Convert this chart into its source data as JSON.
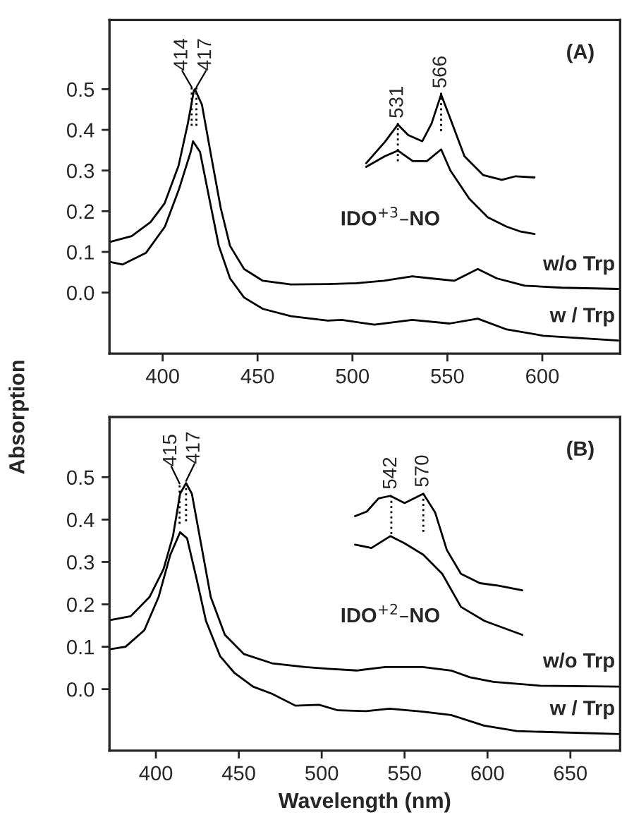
{
  "chart_data": [
    {
      "type": "line",
      "ylabel": "Absorption",
      "xlim": [
        372,
        641
      ],
      "ylim": [
        -0.15,
        0.67
      ],
      "xticks": [
        400,
        450,
        500,
        550,
        600
      ],
      "yticks": [
        {
          "value": 0.0,
          "label": "0.0"
        },
        0.1,
        0.2,
        0.3,
        0.4,
        0.5
      ],
      "grid": false,
      "legend": false,
      "marker": "none",
      "line_style": "solid",
      "series": [
        {
          "name": "w/o Trp",
          "color": "#000000",
          "x": [
            372.6,
            383.7,
            393.6,
            401,
            408.4,
            413.3,
            416.5,
            417,
            420.7,
            425.6,
            430.6,
            435.5,
            442.9,
            452.8,
            467.6,
            487,
            502,
            516.6,
            531.5,
            541.3,
            553.6,
            566,
            576,
            590.7,
            610.4,
            640
          ],
          "values": [
            0.125,
            0.139,
            0.173,
            0.219,
            0.312,
            0.416,
            0.497,
            0.5,
            0.462,
            0.335,
            0.208,
            0.115,
            0.058,
            0.029,
            0.02,
            0.021,
            0.023,
            0.029,
            0.04,
            0.035,
            0.029,
            0.058,
            0.035,
            0.017,
            0.012,
            0.009
          ]
        },
        {
          "name": "w / Trp",
          "color": "#000000",
          "x": [
            372.6,
            378.8,
            391.3,
            401.2,
            408.6,
            414.8,
            416,
            419.7,
            424.6,
            429.6,
            435.5,
            442.9,
            452.8,
            467.6,
            487,
            494.4,
            511.6,
            531.5,
            551.2,
            566,
            580.8,
            600.5,
            640
          ],
          "values": [
            0.075,
            0.069,
            0.098,
            0.162,
            0.254,
            0.346,
            0.372,
            0.346,
            0.231,
            0.115,
            0.035,
            -0.012,
            -0.04,
            -0.058,
            -0.069,
            -0.067,
            -0.079,
            -0.067,
            -0.076,
            -0.064,
            -0.09,
            -0.106,
            -0.118
          ]
        },
        {
          "color": "#000000",
          "x": [
            507.2,
            517,
            523.9,
            529.4,
            536.8,
            541.7,
            546.7,
            551.6,
            559,
            568.8,
            578.7,
            586,
            595.9
          ],
          "values": [
            0.318,
            0.37,
            0.413,
            0.387,
            0.372,
            0.416,
            0.487,
            0.427,
            0.335,
            0.289,
            0.277,
            0.286,
            0.283
          ]
        },
        {
          "color": "#000000",
          "x": [
            507.2,
            517,
            523.9,
            531.8,
            539.2,
            546.7,
            551.6,
            561.5,
            571.3,
            581.2,
            588.6,
            595.9
          ],
          "values": [
            0.309,
            0.335,
            0.349,
            0.323,
            0.323,
            0.352,
            0.3,
            0.231,
            0.185,
            0.162,
            0.15,
            0.144
          ]
        }
      ],
      "annotations": [
        "(A)",
        "IDO$^{+3}$–NO",
        {
          "text": "414",
          "x": 415.3,
          "y": 0.5
        },
        {
          "text": "417",
          "x": 417.8,
          "y": 0.5
        },
        {
          "text": "531",
          "x": 523.9,
          "y": 0.413
        },
        {
          "text": "566",
          "x": 546.7,
          "y": 0.487
        }
      ]
    },
    {
      "type": "line",
      "xlabel": "Wavelength (nm)",
      "xlim": [
        372,
        680
      ],
      "ylim": [
        -0.145,
        0.642
      ],
      "xticks": [
        400,
        450,
        500,
        550,
        600,
        650
      ],
      "yticks": [
        {
          "value": 0.0,
          "label": "0.0"
        },
        0.1,
        0.2,
        0.3,
        0.4,
        0.5
      ],
      "grid": false,
      "legend": false,
      "marker": "none",
      "line_style": "solid",
      "series": [
        {
          "name": "w/o Trp",
          "color": "#000000",
          "x": [
            372.3,
            384.8,
            396.1,
            404.6,
            410.3,
            414.6,
            418.2,
            421.7,
            427.4,
            433.1,
            441.6,
            453,
            470,
            490,
            504.2,
            521.2,
            538.3,
            561,
            578,
            589.4,
            603.6,
            632,
            680
          ],
          "values": [
            0.163,
            0.172,
            0.217,
            0.283,
            0.361,
            0.461,
            0.486,
            0.461,
            0.339,
            0.217,
            0.128,
            0.083,
            0.061,
            0.052,
            0.048,
            0.044,
            0.052,
            0.052,
            0.044,
            0.028,
            0.017,
            0.008,
            0.006
          ]
        },
        {
          "name": "w / Trp",
          "color": "#000000",
          "x": [
            372.3,
            381.7,
            393,
            401.6,
            408.7,
            414.6,
            418.8,
            424.5,
            430.2,
            438.7,
            447.2,
            458.6,
            470,
            484.2,
            498.4,
            509.8,
            526.8,
            541,
            561,
            578,
            597.9,
            617.8,
            680
          ],
          "values": [
            0.094,
            0.1,
            0.139,
            0.217,
            0.317,
            0.37,
            0.356,
            0.261,
            0.161,
            0.078,
            0.039,
            0.006,
            -0.011,
            -0.039,
            -0.037,
            -0.05,
            -0.052,
            -0.046,
            -0.053,
            -0.061,
            -0.086,
            -0.099,
            -0.106
          ]
        },
        {
          "color": "#000000",
          "x": [
            520.1,
            527.2,
            534.3,
            541.4,
            550,
            561.3,
            568.4,
            575.5,
            584,
            595.4,
            606.8,
            621
          ],
          "values": [
            0.408,
            0.419,
            0.45,
            0.456,
            0.439,
            0.461,
            0.417,
            0.328,
            0.272,
            0.25,
            0.244,
            0.233
          ]
        },
        {
          "color": "#000000",
          "x": [
            520.1,
            530,
            541.4,
            550,
            561.3,
            572.7,
            584,
            598.2,
            621
          ],
          "values": [
            0.341,
            0.333,
            0.361,
            0.344,
            0.317,
            0.272,
            0.194,
            0.161,
            0.128
          ]
        }
      ],
      "annotations": [
        "(B)",
        "IDO$^{+2}$–NO",
        {
          "text": "415",
          "x": 414.3,
          "y": 0.48
        },
        {
          "text": "417",
          "x": 418.2,
          "y": 0.486
        },
        {
          "text": "542",
          "x": 542,
          "y": 0.456
        },
        {
          "text": "570",
          "x": 561.3,
          "y": 0.461
        }
      ]
    }
  ]
}
